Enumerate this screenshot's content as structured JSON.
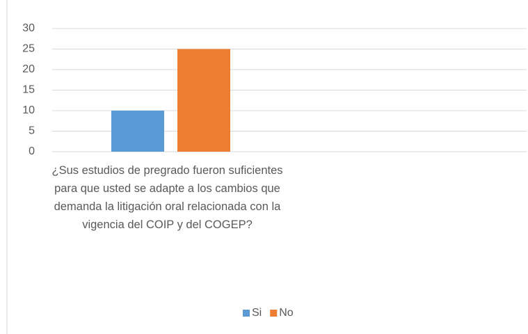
{
  "chart_data": {
    "type": "bar",
    "categories": [
      "¿Sus estudios de pregrado fueron suficientes para que usted se adapte a los cambios que demanda la litigación oral relacionada con la vigencia del COIP y del COGEP?",
      null
    ],
    "series": [
      {
        "name": "Si",
        "color": "#5b9bd5",
        "values": [
          10,
          null
        ]
      },
      {
        "name": "No",
        "color": "#ed7d31",
        "values": [
          25,
          null
        ]
      }
    ],
    "ylim": [
      0,
      30
    ],
    "yticks": [
      0,
      5,
      10,
      15,
      20,
      25,
      30
    ],
    "grid": true,
    "legend": "bottom"
  }
}
